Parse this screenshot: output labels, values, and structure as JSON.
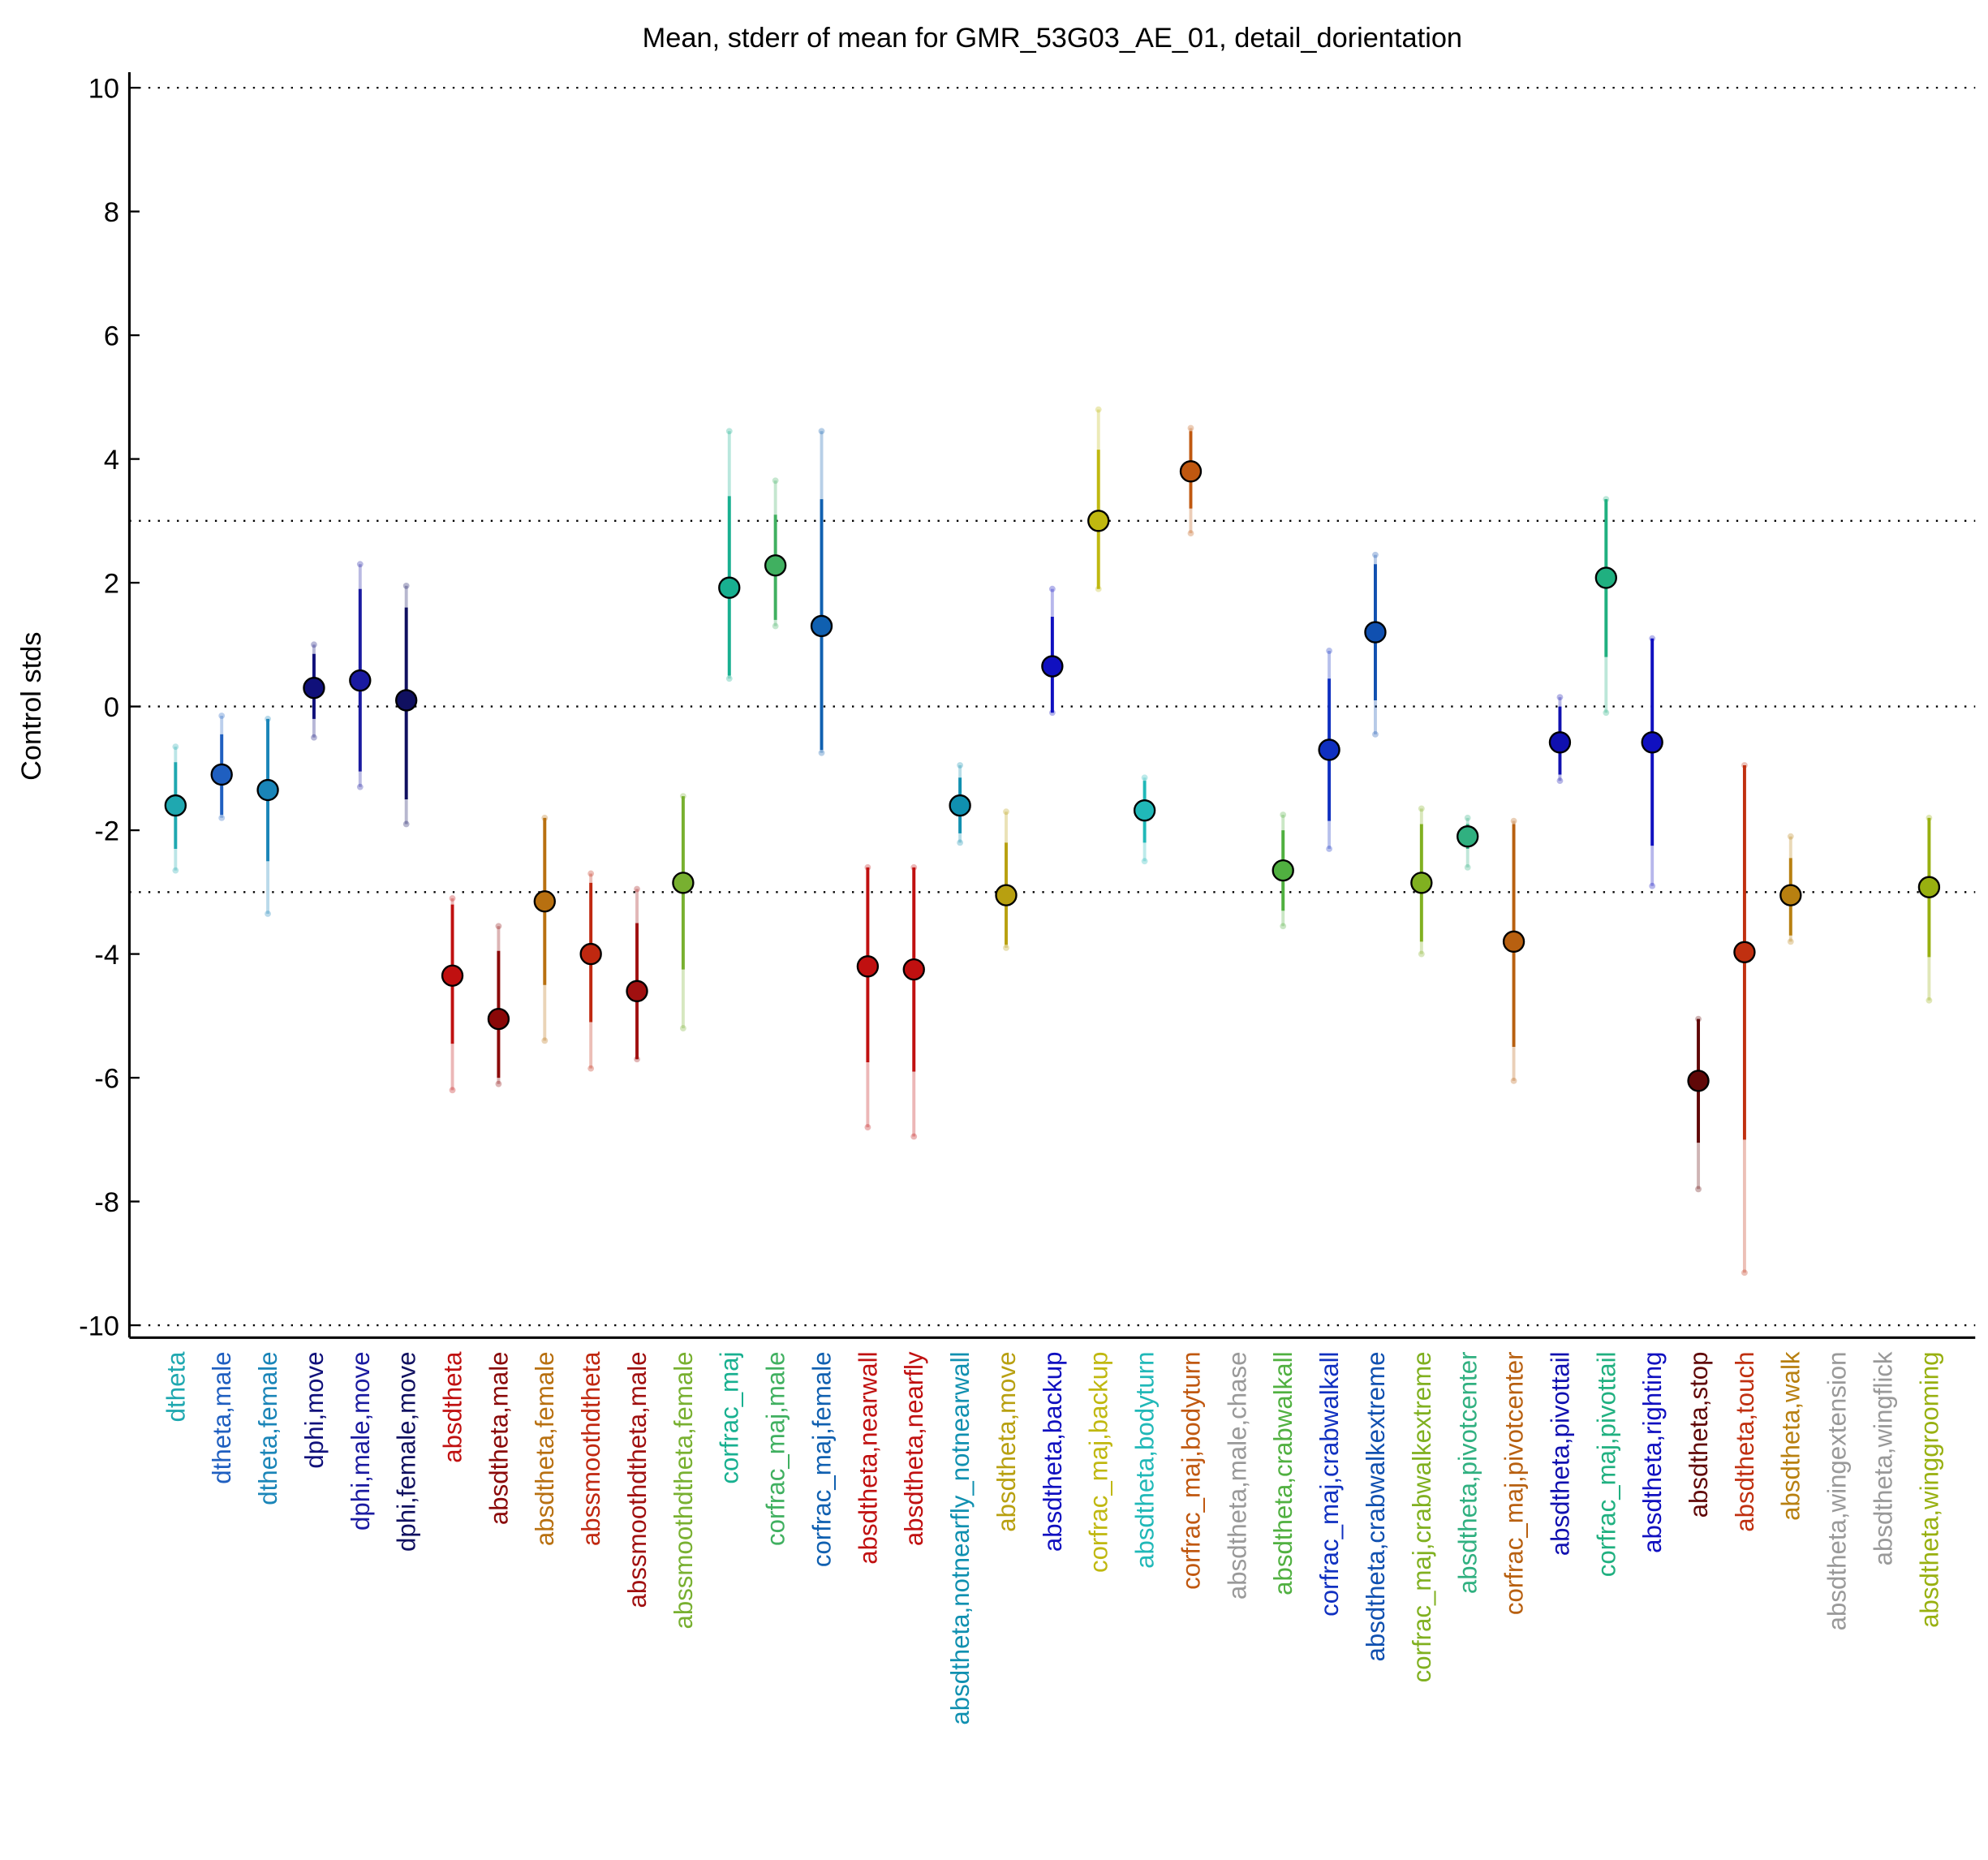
{
  "chart_data": {
    "type": "errorbar",
    "title": "Mean, stderr of mean for GMR_53G03_AE_01, detail_dorientation",
    "y_label": "Control stds",
    "categories": [
      "dtheta",
      "dtheta,male",
      "dtheta,female",
      "dphi,move",
      "dphi,male,move",
      "dphi,female,move",
      "absdtheta",
      "absdtheta,male",
      "absdtheta,female",
      "abssmoothdtheta",
      "abssmoothdtheta,male",
      "abssmoothdtheta,female",
      "corfrac_maj",
      "corfrac_maj,male",
      "corfrac_maj,female",
      "absdtheta,nearwall",
      "absdtheta,nearfly",
      "absdtheta,notnearfly_notnearwall",
      "absdtheta,move",
      "absdtheta,backup",
      "corfrac_maj,backup",
      "absdtheta,bodyturn",
      "corfrac_maj,bodyturn",
      "absdtheta,male,chase",
      "absdtheta,crabwalkall",
      "corfrac_maj,crabwalkall",
      "absdtheta,crabwalkextreme",
      "corfrac_maj,crabwalkextreme",
      "absdtheta,pivotcenter",
      "corfrac_maj,pivotcenter",
      "absdtheta,pivottail",
      "corfrac_maj,pivottail",
      "absdtheta,righting",
      "absdtheta,stop",
      "absdtheta,touch",
      "absdtheta,walk",
      "absdtheta,wingextension",
      "absdtheta,wingflick",
      "absdtheta,winggrooming"
    ],
    "colors": [
      "#1fa8b0",
      "#1f5fc0",
      "#1a85b8",
      "#10107a",
      "#1a1aa0",
      "#101060",
      "#c01010",
      "#8a0808",
      "#b87010",
      "#c02810",
      "#a01010",
      "#78b030",
      "#18b090",
      "#40b060",
      "#1060b0",
      "#c01010",
      "#c01010",
      "#1090b0",
      "#b8a010",
      "#1010c0",
      "#c0b810",
      "#20b8b8",
      "#c05810",
      "#999999",
      "#50b040",
      "#1030c0",
      "#1050b0",
      "#80b020",
      "#30b080",
      "#b86010",
      "#1010b0",
      "#20b080",
      "#1010c0",
      "#600808",
      "#c03010",
      "#b88010",
      "#999999",
      "#999999",
      "#98b010"
    ],
    "values": [
      -1.6,
      -1.1,
      -1.35,
      0.3,
      0.42,
      0.1,
      -4.35,
      -5.05,
      -3.15,
      -4.0,
      -4.6,
      -2.85,
      1.92,
      2.28,
      1.3,
      -4.2,
      -4.25,
      -1.6,
      -3.05,
      0.65,
      3.0,
      -1.68,
      3.8,
      null,
      -2.65,
      -0.7,
      1.2,
      -2.85,
      -2.1,
      -3.8,
      -0.58,
      2.08,
      -0.58,
      -6.05,
      -3.97,
      -3.05,
      null,
      null,
      -2.92
    ],
    "stderr_low": [
      -2.3,
      -1.75,
      -2.5,
      -0.2,
      -1.05,
      -1.5,
      -5.45,
      -6.0,
      -4.5,
      -5.1,
      -5.7,
      -4.25,
      0.5,
      1.4,
      -0.7,
      -5.75,
      -5.9,
      -2.05,
      -3.85,
      -0.1,
      1.9,
      -2.2,
      3.2,
      null,
      -3.3,
      -1.85,
      0.1,
      -3.8,
      -2.3,
      -5.5,
      -1.1,
      0.8,
      -2.25,
      -7.05,
      -7.0,
      -3.7,
      null,
      null,
      -4.05
    ],
    "stderr_high": [
      -0.9,
      -0.45,
      -0.2,
      0.85,
      1.9,
      1.6,
      -3.2,
      -3.95,
      -1.8,
      -2.85,
      -3.5,
      -1.45,
      3.4,
      3.1,
      3.35,
      -2.6,
      -2.6,
      -1.15,
      -2.2,
      1.45,
      4.15,
      -1.2,
      4.45,
      null,
      -2.0,
      0.45,
      2.3,
      -1.9,
      -1.9,
      -1.9,
      0.0,
      3.35,
      1.1,
      -5.05,
      -0.95,
      -2.45,
      null,
      null,
      -1.8
    ],
    "range_low": [
      -2.65,
      -1.8,
      -3.35,
      -0.5,
      -1.3,
      -1.9,
      -6.2,
      -6.1,
      -5.4,
      -5.85,
      -5.7,
      -5.2,
      0.45,
      1.3,
      -0.75,
      -6.8,
      -6.95,
      -2.2,
      -3.9,
      -0.1,
      1.9,
      -2.5,
      2.8,
      null,
      -3.55,
      -2.3,
      -0.45,
      -4.0,
      -2.6,
      -6.05,
      -1.2,
      -0.1,
      -2.9,
      -7.8,
      -9.15,
      -3.8,
      null,
      null,
      -4.75
    ],
    "range_high": [
      -0.65,
      -0.15,
      -0.2,
      1.0,
      2.3,
      1.95,
      -3.1,
      -3.55,
      -1.8,
      -2.7,
      -2.95,
      -1.45,
      4.45,
      3.65,
      4.45,
      -2.6,
      -2.6,
      -0.95,
      -1.7,
      1.9,
      4.8,
      -1.15,
      4.5,
      null,
      -1.75,
      0.9,
      2.45,
      -1.65,
      -1.8,
      -1.85,
      0.15,
      3.35,
      1.1,
      -5.05,
      -0.95,
      -2.1,
      null,
      null,
      -1.8
    ],
    "ylim": [
      -10.2,
      10.25
    ],
    "yticks": [
      -10,
      -8,
      -6,
      -4,
      -2,
      0,
      2,
      4,
      6,
      8,
      10
    ],
    "reference_lines": [
      10,
      3,
      0,
      -3,
      -10
    ]
  }
}
